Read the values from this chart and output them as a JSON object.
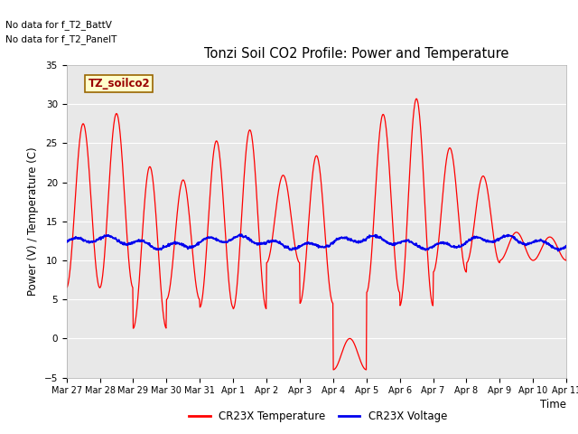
{
  "title": "Tonzi Soil CO2 Profile: Power and Temperature",
  "ylabel": "Power (V) / Temperature (C)",
  "xlabel": "Time",
  "ylim": [
    -5,
    35
  ],
  "yticks": [
    -5,
    0,
    5,
    10,
    15,
    20,
    25,
    30,
    35
  ],
  "no_data_text_1": "No data for f_T2_BattV",
  "no_data_text_2": "No data for f_T2_PanelT",
  "legend_box_label": "TZ_soilco2",
  "x_tick_labels": [
    "Mar 27",
    "Mar 28",
    "Mar 29",
    "Mar 30",
    "Mar 31",
    "Apr 1",
    "Apr 2",
    "Apr 3",
    "Apr 4",
    "Apr 5",
    "Apr 6",
    "Apr 7",
    "Apr 8",
    "Apr 9",
    "Apr 10",
    "Apr 11"
  ],
  "background_color": "#e8e8e8",
  "red_color": "#ff0000",
  "blue_color": "#0000ee",
  "legend_line_red": "CR23X Temperature",
  "legend_line_blue": "CR23X Voltage",
  "day_peaks": [
    27.5,
    28.8,
    22.0,
    20.3,
    25.3,
    26.7,
    20.9,
    23.4,
    0.0,
    28.7,
    30.7,
    24.4,
    20.8,
    13.6,
    13.0,
    12.5
  ],
  "day_mins": [
    6.5,
    6.5,
    1.3,
    5.0,
    4.0,
    3.8,
    9.7,
    4.5,
    -4.0,
    5.9,
    4.2,
    8.5,
    9.7,
    10.0,
    10.0,
    12.0
  ],
  "blue_base": 12.3,
  "blue_amp_slow": 0.5,
  "blue_amp_daily": 0.4,
  "blue_period_slow": 4.0
}
